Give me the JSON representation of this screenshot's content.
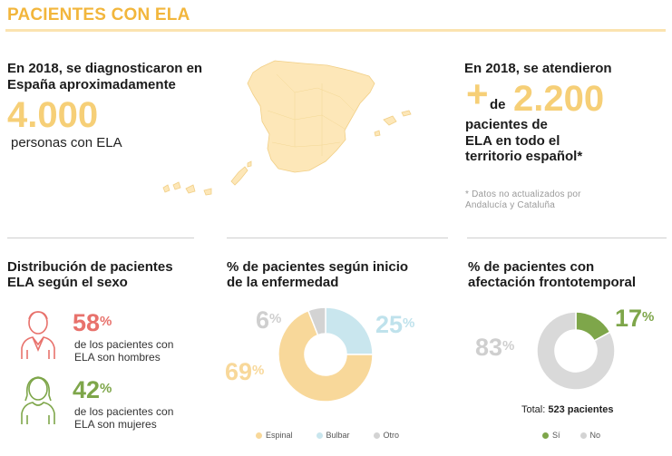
{
  "title": "PACIENTES CON ELA",
  "left_block": {
    "heading": "En 2018, se diagnosticaron en España aproximadamente",
    "number": "4.000",
    "sub": "personas con ELA"
  },
  "right_block": {
    "heading": "En 2018, se atendieron",
    "plus": "+",
    "de": "de",
    "number": "2.200",
    "sub_lines": [
      "pacientes de",
      "ELA en todo el",
      "territorio español*"
    ],
    "footnote_lines": [
      "* Datos no actualizados por",
      "Andalucía y Cataluña"
    ]
  },
  "sex": {
    "heading_lines": [
      "Distribución de pacientes",
      "ELA según el sexo"
    ],
    "men": {
      "value": "58",
      "unit": "%",
      "caption_lines": [
        "de los pacientes con",
        "ELA son hombres"
      ],
      "color": "#e8726c"
    },
    "women": {
      "value": "42",
      "unit": "%",
      "caption_lines": [
        "de los pacientes con",
        "ELA son mujeres"
      ],
      "color": "#7ea64a"
    }
  },
  "onset": {
    "heading_lines": [
      "% de pacientes según inicio",
      "de la enfermedad"
    ],
    "labels": {
      "otro": "6",
      "bulbar": "25",
      "espinal": "69",
      "unit": "%"
    },
    "legend": [
      {
        "label": "Espinal",
        "color": "#f8d89a"
      },
      {
        "label": "Bulbar",
        "color": "#c9e6ee"
      },
      {
        "label": "Otro",
        "color": "#d3d3d3"
      }
    ]
  },
  "fronto": {
    "heading_lines": [
      "% de pacientes con",
      "afectación frontotemporal"
    ],
    "labels": {
      "si": "17",
      "no": "83",
      "unit": "%"
    },
    "total_label": "Total:",
    "total_value": "523 pacientes",
    "legend": [
      {
        "label": "Sí",
        "color": "#7ea64a"
      },
      {
        "label": "No",
        "color": "#d3d3d3"
      }
    ]
  },
  "chart_data": [
    {
      "type": "pie",
      "categories": [
        "Espinal",
        "Bulbar",
        "Otro"
      ],
      "values": [
        69,
        25,
        6
      ],
      "colors": [
        "#f8d89a",
        "#c9e6ee",
        "#d3d3d3"
      ],
      "title": "% de pacientes según inicio de la enfermedad"
    },
    {
      "type": "pie",
      "categories": [
        "Sí",
        "No"
      ],
      "values": [
        17,
        83
      ],
      "colors": [
        "#7ea64a",
        "#d9d9d9"
      ],
      "title": "% de pacientes con afectación frontotemporal"
    }
  ]
}
